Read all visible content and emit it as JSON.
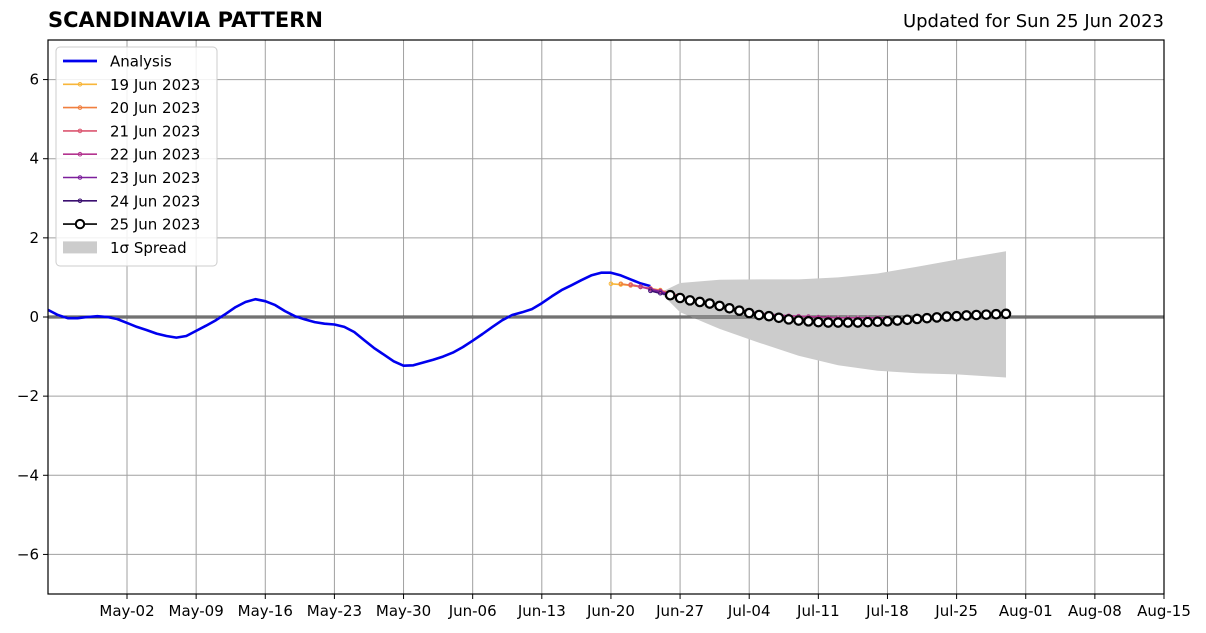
{
  "chart_data": {
    "type": "line",
    "title": "SCANDINAVIA PATTERN",
    "subtitle": "Updated for Sun 25 Jun 2023",
    "xlabel": "",
    "ylabel": "",
    "ylim": [
      -7,
      7
    ],
    "xlim": [
      "2023-04-24",
      "2023-08-15"
    ],
    "grid": true,
    "legend_position": "top-left",
    "x_ticks": [
      {
        "date": "2023-05-02",
        "label": "May-02"
      },
      {
        "date": "2023-05-09",
        "label": "May-09"
      },
      {
        "date": "2023-05-16",
        "label": "May-16"
      },
      {
        "date": "2023-05-23",
        "label": "May-23"
      },
      {
        "date": "2023-05-30",
        "label": "May-30"
      },
      {
        "date": "2023-06-06",
        "label": "Jun-06"
      },
      {
        "date": "2023-06-13",
        "label": "Jun-13"
      },
      {
        "date": "2023-06-20",
        "label": "Jun-20"
      },
      {
        "date": "2023-06-27",
        "label": "Jun-27"
      },
      {
        "date": "2023-07-04",
        "label": "Jul-04"
      },
      {
        "date": "2023-07-11",
        "label": "Jul-11"
      },
      {
        "date": "2023-07-18",
        "label": "Jul-18"
      },
      {
        "date": "2023-07-25",
        "label": "Jul-25"
      },
      {
        "date": "2023-08-01",
        "label": "Aug-01"
      },
      {
        "date": "2023-08-08",
        "label": "Aug-08"
      },
      {
        "date": "2023-08-15",
        "label": "Aug-15"
      }
    ],
    "y_ticks": [
      {
        "value": 6,
        "label": "6"
      },
      {
        "value": 4,
        "label": "4"
      },
      {
        "value": 2,
        "label": "2"
      },
      {
        "value": 0,
        "label": "0"
      },
      {
        "value": -2,
        "label": "−2"
      },
      {
        "value": -4,
        "label": "−4"
      },
      {
        "value": -6,
        "label": "−6"
      }
    ],
    "analysis": {
      "name": "Analysis",
      "color": "#0000ee",
      "points": [
        [
          "2023-04-24",
          0.18
        ],
        [
          "2023-04-25",
          0.05
        ],
        [
          "2023-04-26",
          -0.03
        ],
        [
          "2023-04-27",
          -0.03
        ],
        [
          "2023-04-28",
          0.0
        ],
        [
          "2023-04-29",
          0.02
        ],
        [
          "2023-04-30",
          0.0
        ],
        [
          "2023-05-01",
          -0.05
        ],
        [
          "2023-05-02",
          -0.15
        ],
        [
          "2023-05-03",
          -0.25
        ],
        [
          "2023-05-04",
          -0.33
        ],
        [
          "2023-05-05",
          -0.42
        ],
        [
          "2023-05-06",
          -0.48
        ],
        [
          "2023-05-07",
          -0.52
        ],
        [
          "2023-05-08",
          -0.48
        ],
        [
          "2023-05-09",
          -0.35
        ],
        [
          "2023-05-10",
          -0.22
        ],
        [
          "2023-05-11",
          -0.08
        ],
        [
          "2023-05-12",
          0.08
        ],
        [
          "2023-05-13",
          0.25
        ],
        [
          "2023-05-14",
          0.38
        ],
        [
          "2023-05-15",
          0.45
        ],
        [
          "2023-05-16",
          0.4
        ],
        [
          "2023-05-17",
          0.3
        ],
        [
          "2023-05-18",
          0.15
        ],
        [
          "2023-05-19",
          0.02
        ],
        [
          "2023-05-20",
          -0.06
        ],
        [
          "2023-05-21",
          -0.13
        ],
        [
          "2023-05-22",
          -0.17
        ],
        [
          "2023-05-23",
          -0.19
        ],
        [
          "2023-05-24",
          -0.25
        ],
        [
          "2023-05-25",
          -0.38
        ],
        [
          "2023-05-26",
          -0.58
        ],
        [
          "2023-05-27",
          -0.78
        ],
        [
          "2023-05-28",
          -0.95
        ],
        [
          "2023-05-29",
          -1.12
        ],
        [
          "2023-05-30",
          -1.23
        ],
        [
          "2023-05-31",
          -1.22
        ],
        [
          "2023-06-01",
          -1.15
        ],
        [
          "2023-06-02",
          -1.08
        ],
        [
          "2023-06-03",
          -1.0
        ],
        [
          "2023-06-04",
          -0.9
        ],
        [
          "2023-06-05",
          -0.76
        ],
        [
          "2023-06-06",
          -0.6
        ],
        [
          "2023-06-07",
          -0.43
        ],
        [
          "2023-06-08",
          -0.25
        ],
        [
          "2023-06-09",
          -0.08
        ],
        [
          "2023-06-10",
          0.05
        ],
        [
          "2023-06-11",
          0.12
        ],
        [
          "2023-06-12",
          0.2
        ],
        [
          "2023-06-13",
          0.35
        ],
        [
          "2023-06-14",
          0.52
        ],
        [
          "2023-06-15",
          0.68
        ],
        [
          "2023-06-16",
          0.8
        ],
        [
          "2023-06-17",
          0.93
        ],
        [
          "2023-06-18",
          1.05
        ],
        [
          "2023-06-19",
          1.12
        ],
        [
          "2023-06-20",
          1.12
        ],
        [
          "2023-06-21",
          1.05
        ],
        [
          "2023-06-22",
          0.95
        ],
        [
          "2023-06-23",
          0.85
        ],
        [
          "2023-06-24",
          0.78
        ]
      ]
    },
    "forecasts": [
      {
        "name": "19 Jun 2023",
        "color": "#f8b63a",
        "points": [
          [
            "2023-06-20",
            0.84
          ],
          [
            "2023-06-21",
            0.82
          ],
          [
            "2023-06-22",
            0.8
          ],
          [
            "2023-06-23",
            0.76
          ],
          [
            "2023-06-24",
            0.72
          ],
          [
            "2023-06-25",
            0.68
          ]
        ]
      },
      {
        "name": "20 Jun 2023",
        "color": "#f07f3f",
        "points": [
          [
            "2023-06-21",
            0.84
          ],
          [
            "2023-06-22",
            0.8
          ],
          [
            "2023-06-23",
            0.76
          ],
          [
            "2023-06-24",
            0.72
          ],
          [
            "2023-06-25",
            0.67
          ],
          [
            "2023-06-26",
            0.62
          ]
        ]
      },
      {
        "name": "21 Jun 2023",
        "color": "#dc5670",
        "points": [
          [
            "2023-06-22",
            0.82
          ],
          [
            "2023-06-23",
            0.77
          ],
          [
            "2023-06-24",
            0.72
          ],
          [
            "2023-06-25",
            0.66
          ],
          [
            "2023-06-26",
            0.6
          ],
          [
            "2023-06-27",
            0.54
          ]
        ]
      },
      {
        "name": "22 Jun 2023",
        "color": "#b3348f",
        "points": [
          [
            "2023-06-23",
            0.76
          ],
          [
            "2023-06-24",
            0.7
          ],
          [
            "2023-06-25",
            0.64
          ],
          [
            "2023-06-26",
            0.57
          ],
          [
            "2023-06-27",
            0.5
          ],
          [
            "2023-06-28",
            0.44
          ],
          [
            "2023-06-29",
            0.38
          ],
          [
            "2023-06-30",
            0.32
          ],
          [
            "2023-07-01",
            0.27
          ],
          [
            "2023-07-02",
            0.22
          ],
          [
            "2023-07-03",
            0.18
          ],
          [
            "2023-07-04",
            0.14
          ],
          [
            "2023-07-05",
            0.1
          ],
          [
            "2023-07-06",
            0.07
          ],
          [
            "2023-07-07",
            0.05
          ],
          [
            "2023-07-08",
            0.03
          ],
          [
            "2023-07-09",
            0.02
          ],
          [
            "2023-07-10",
            0.01
          ],
          [
            "2023-07-11",
            0.0
          ],
          [
            "2023-07-12",
            -0.01
          ],
          [
            "2023-07-13",
            -0.02
          ],
          [
            "2023-07-14",
            -0.02
          ],
          [
            "2023-07-15",
            -0.02
          ],
          [
            "2023-07-16",
            -0.02
          ],
          [
            "2023-07-17",
            -0.02
          ],
          [
            "2023-07-18",
            -0.02
          ]
        ]
      },
      {
        "name": "23 Jun 2023",
        "color": "#7c1f9c",
        "points": [
          [
            "2023-06-24",
            0.7
          ],
          [
            "2023-06-25",
            0.64
          ],
          [
            "2023-06-26",
            0.57
          ],
          [
            "2023-06-27",
            0.5
          ],
          [
            "2023-06-28",
            0.44
          ],
          [
            "2023-06-29",
            0.38
          ],
          [
            "2023-06-30",
            0.32
          ],
          [
            "2023-07-01",
            0.27
          ],
          [
            "2023-07-02",
            0.22
          ],
          [
            "2023-07-03",
            0.17
          ],
          [
            "2023-07-04",
            0.13
          ]
        ]
      },
      {
        "name": "24 Jun 2023",
        "color": "#3b0f70",
        "points": [
          [
            "2023-06-24",
            0.66
          ],
          [
            "2023-06-25",
            0.6
          ],
          [
            "2023-06-26",
            0.54
          ],
          [
            "2023-06-27",
            0.48
          ],
          [
            "2023-06-28",
            0.42
          ]
        ]
      }
    ],
    "forecast_latest": {
      "name": "25 Jun 2023",
      "color": "#000000",
      "points": [
        [
          "2023-06-26",
          0.55
        ],
        [
          "2023-06-27",
          0.48
        ],
        [
          "2023-06-28",
          0.42
        ],
        [
          "2023-06-29",
          0.38
        ],
        [
          "2023-06-30",
          0.34
        ],
        [
          "2023-07-01",
          0.28
        ],
        [
          "2023-07-02",
          0.22
        ],
        [
          "2023-07-03",
          0.16
        ],
        [
          "2023-07-04",
          0.1
        ],
        [
          "2023-07-05",
          0.05
        ],
        [
          "2023-07-06",
          0.02
        ],
        [
          "2023-07-07",
          -0.02
        ],
        [
          "2023-07-08",
          -0.06
        ],
        [
          "2023-07-09",
          -0.09
        ],
        [
          "2023-07-10",
          -0.11
        ],
        [
          "2023-07-11",
          -0.13
        ],
        [
          "2023-07-12",
          -0.14
        ],
        [
          "2023-07-13",
          -0.14
        ],
        [
          "2023-07-14",
          -0.14
        ],
        [
          "2023-07-15",
          -0.14
        ],
        [
          "2023-07-16",
          -0.13
        ],
        [
          "2023-07-17",
          -0.12
        ],
        [
          "2023-07-18",
          -0.11
        ],
        [
          "2023-07-19",
          -0.09
        ],
        [
          "2023-07-20",
          -0.07
        ],
        [
          "2023-07-21",
          -0.05
        ],
        [
          "2023-07-22",
          -0.03
        ],
        [
          "2023-07-23",
          -0.01
        ],
        [
          "2023-07-24",
          0.01
        ],
        [
          "2023-07-25",
          0.02
        ],
        [
          "2023-07-26",
          0.04
        ],
        [
          "2023-07-27",
          0.05
        ],
        [
          "2023-07-28",
          0.06
        ],
        [
          "2023-07-29",
          0.07
        ],
        [
          "2023-07-30",
          0.08
        ]
      ]
    },
    "spread": {
      "name": "1σ Spread",
      "color": "#cccccc",
      "points": [
        [
          "2023-06-25",
          0.62,
          0.62
        ],
        [
          "2023-06-27",
          0.86,
          0.12
        ],
        [
          "2023-07-01",
          0.94,
          -0.3
        ],
        [
          "2023-07-05",
          0.95,
          -0.65
        ],
        [
          "2023-07-09",
          0.95,
          -0.98
        ],
        [
          "2023-07-13",
          1.0,
          -1.22
        ],
        [
          "2023-07-17",
          1.1,
          -1.36
        ],
        [
          "2023-07-21",
          1.27,
          -1.42
        ],
        [
          "2023-07-25",
          1.45,
          -1.45
        ],
        [
          "2023-07-30",
          1.66,
          -1.53
        ]
      ]
    }
  }
}
